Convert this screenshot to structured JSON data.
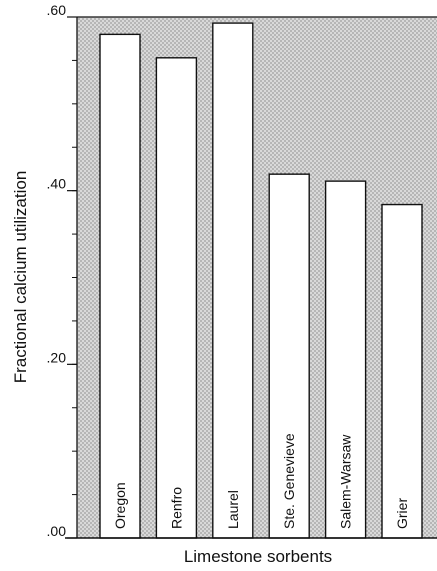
{
  "colors": {
    "background": "#ffffff",
    "plot_fill": "#d9d9d9",
    "stipple": "#6e6e6e",
    "bar_fill": "#ffffff",
    "stroke": "#111111"
  },
  "chart_data": {
    "type": "bar",
    "orientation": "vertical",
    "categories": [
      "Oregon",
      "Renfro",
      "Laurel",
      "Ste. Genevieve",
      "Salem-Warsaw",
      "Grier"
    ],
    "values": [
      0.58,
      0.553,
      0.593,
      0.419,
      0.411,
      0.384
    ],
    "xlabel": "Limestone sorbents",
    "ylabel": "Fractional calcium utilization",
    "ylim": [
      0,
      0.6
    ],
    "yticks": [
      0,
      0.2,
      0.4,
      0.6
    ],
    "ytick_labels": [
      ".00",
      ".20",
      ".40",
      ".60"
    ],
    "minor_tick_step": 0.05,
    "labels_inside_bars": true,
    "grid": false,
    "legend": "none",
    "background_pattern": "stipple"
  }
}
